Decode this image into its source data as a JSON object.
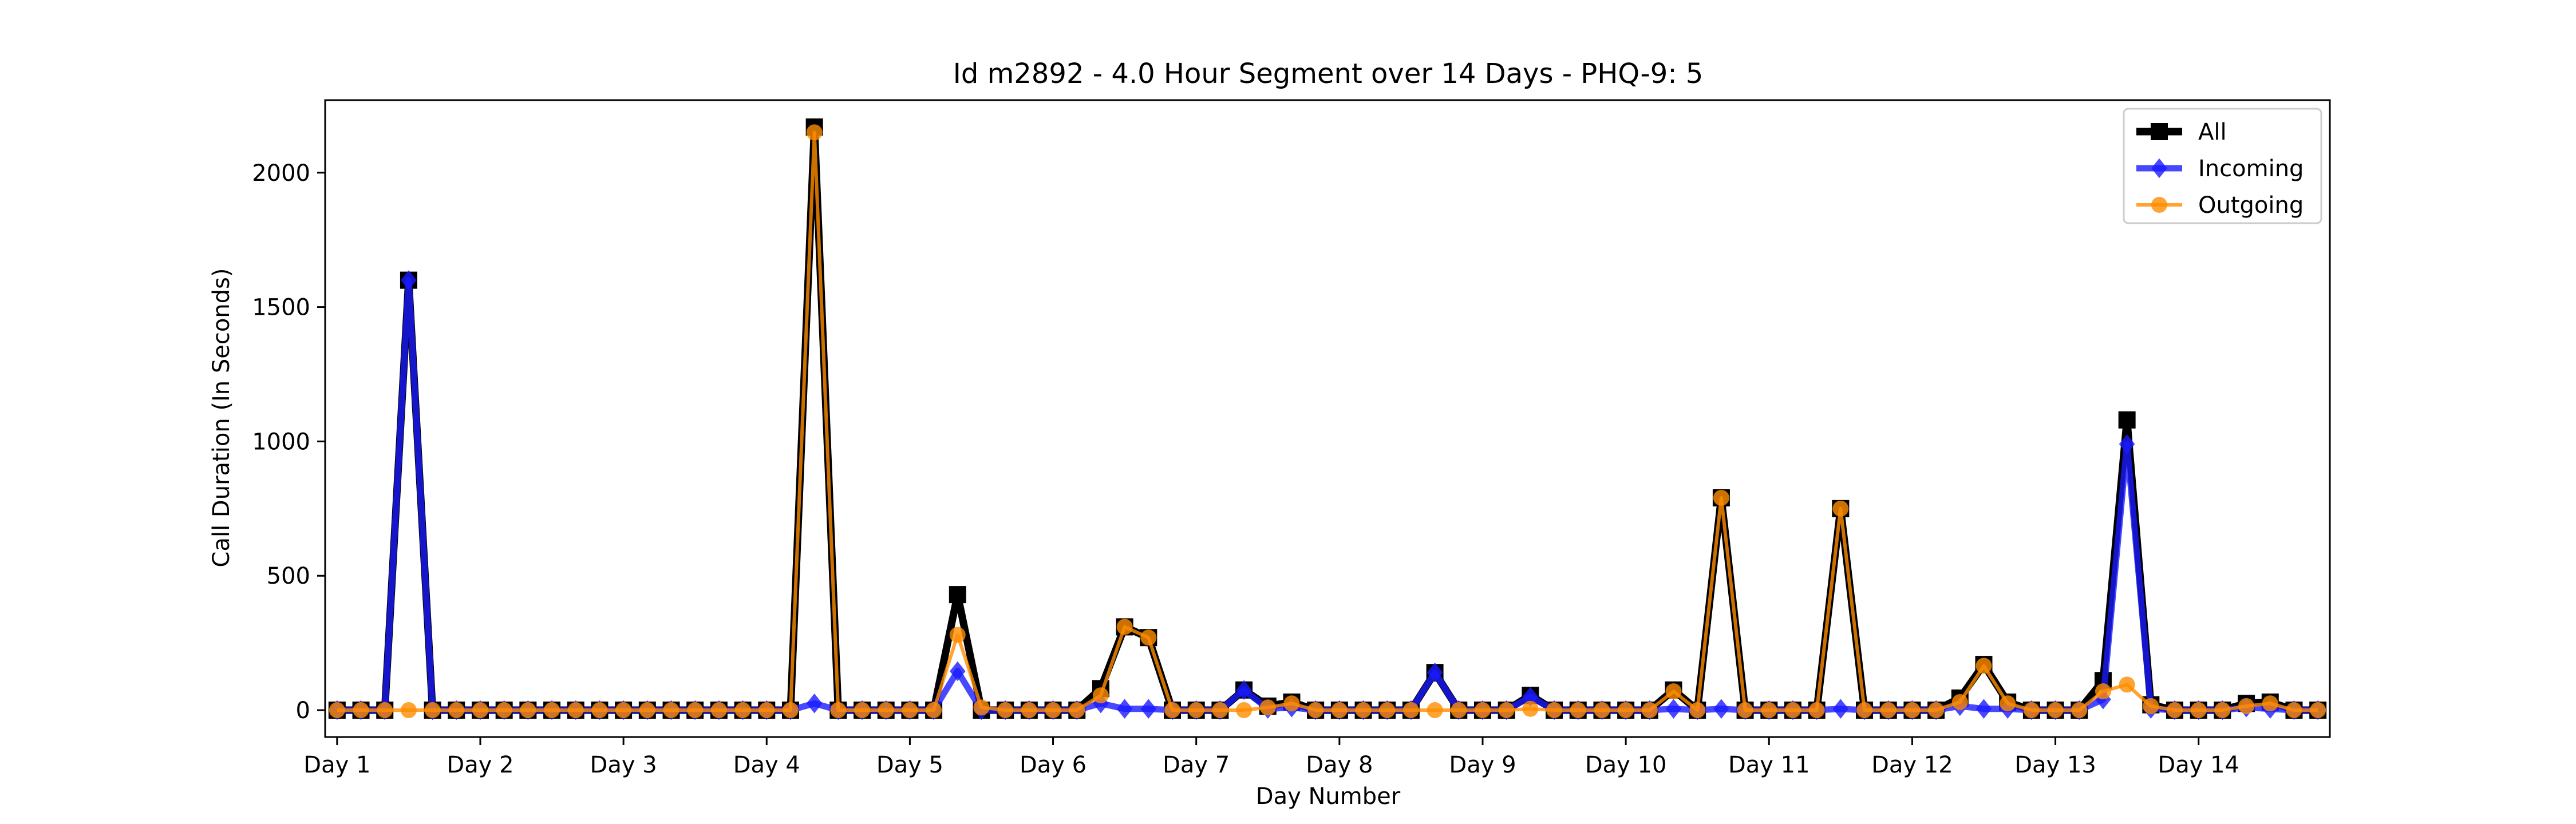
{
  "chart_data": {
    "type": "line",
    "title": "Id m2892 - 4.0 Hour Segment over 14 Days - PHQ-9: 5",
    "xlabel": "Day Number",
    "ylabel": "Call Duration (In Seconds)",
    "xlim": [
      -0.5,
      83.5
    ],
    "ylim": [
      -100,
      2270
    ],
    "yticks": [
      0,
      500,
      1000,
      1500,
      2000
    ],
    "xticks": [
      {
        "index": 0,
        "label": "Day 1"
      },
      {
        "index": 6,
        "label": "Day 2"
      },
      {
        "index": 12,
        "label": "Day 3"
      },
      {
        "index": 18,
        "label": "Day 4"
      },
      {
        "index": 24,
        "label": "Day 5"
      },
      {
        "index": 30,
        "label": "Day 6"
      },
      {
        "index": 36,
        "label": "Day 7"
      },
      {
        "index": 42,
        "label": "Day 8"
      },
      {
        "index": 48,
        "label": "Day 9"
      },
      {
        "index": 54,
        "label": "Day 10"
      },
      {
        "index": 60,
        "label": "Day 11"
      },
      {
        "index": 66,
        "label": "Day 12"
      },
      {
        "index": 72,
        "label": "Day 13"
      },
      {
        "index": 78,
        "label": "Day 14"
      }
    ],
    "grid": false,
    "legend_position": "top-right",
    "series": [
      {
        "name": "All",
        "color": "#000000",
        "marker": "square",
        "values": [
          0,
          0,
          0,
          1600,
          0,
          0,
          0,
          0,
          0,
          0,
          0,
          0,
          0,
          0,
          0,
          0,
          0,
          0,
          0,
          0,
          2170,
          0,
          0,
          0,
          0,
          0,
          430,
          0,
          0,
          0,
          0,
          0,
          80,
          310,
          270,
          0,
          0,
          0,
          75,
          15,
          30,
          0,
          0,
          0,
          0,
          0,
          140,
          0,
          0,
          0,
          55,
          0,
          0,
          0,
          0,
          0,
          75,
          0,
          790,
          0,
          0,
          0,
          0,
          750,
          0,
          0,
          0,
          0,
          45,
          170,
          30,
          0,
          0,
          0,
          110,
          1080,
          20,
          0,
          0,
          0,
          25,
          30,
          0,
          0
        ]
      },
      {
        "name": "Incoming",
        "color": "#1a1aff",
        "marker": "diamond",
        "values": [
          0,
          0,
          0,
          1600,
          0,
          0,
          0,
          0,
          0,
          0,
          0,
          0,
          0,
          0,
          0,
          0,
          0,
          0,
          0,
          0,
          25,
          0,
          0,
          0,
          0,
          0,
          145,
          0,
          0,
          0,
          0,
          0,
          25,
          5,
          5,
          0,
          0,
          0,
          75,
          5,
          10,
          0,
          0,
          0,
          0,
          0,
          140,
          0,
          0,
          0,
          50,
          0,
          0,
          0,
          0,
          0,
          5,
          0,
          5,
          0,
          0,
          0,
          0,
          5,
          0,
          0,
          0,
          0,
          15,
          5,
          5,
          0,
          0,
          0,
          40,
          990,
          5,
          0,
          0,
          0,
          10,
          5,
          0,
          0
        ]
      },
      {
        "name": "Outgoing",
        "color": "#ff8c00",
        "marker": "circle",
        "values": [
          0,
          0,
          0,
          0,
          0,
          0,
          0,
          0,
          0,
          0,
          0,
          0,
          0,
          0,
          0,
          0,
          0,
          0,
          0,
          0,
          2150,
          0,
          0,
          0,
          0,
          0,
          280,
          10,
          0,
          0,
          0,
          0,
          55,
          310,
          270,
          0,
          0,
          0,
          0,
          10,
          25,
          0,
          0,
          0,
          0,
          0,
          0,
          0,
          0,
          0,
          5,
          0,
          0,
          0,
          0,
          0,
          70,
          0,
          790,
          0,
          0,
          0,
          0,
          750,
          0,
          0,
          0,
          0,
          30,
          165,
          25,
          0,
          0,
          0,
          70,
          95,
          15,
          0,
          0,
          0,
          15,
          25,
          0,
          0
        ]
      }
    ]
  }
}
